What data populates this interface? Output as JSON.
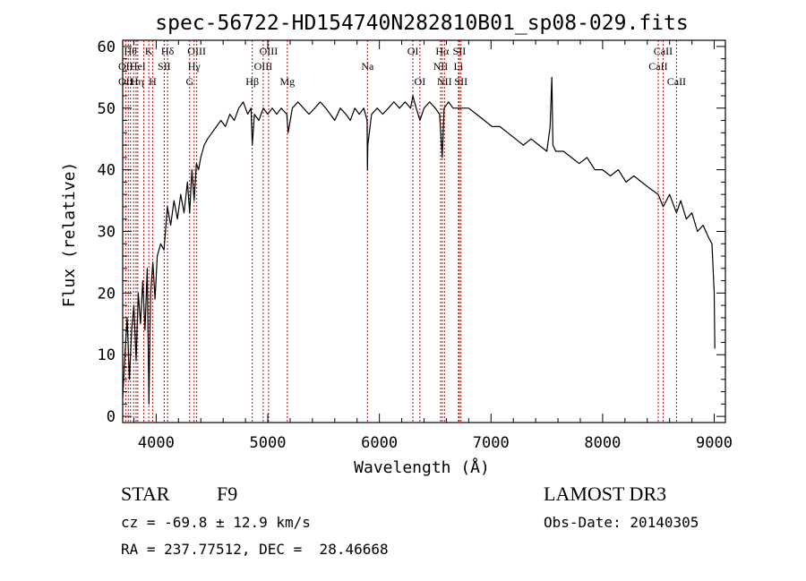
{
  "chart_data": {
    "type": "line",
    "title": "spec-56722-HD154740N282810B01_sp08-029.fits",
    "xlabel": "Wavelength (Å)",
    "ylabel": "Flux (relative)",
    "xlim": [
      3700,
      9100
    ],
    "ylim": [
      -1,
      61
    ],
    "x_ticks": [
      "4000",
      "5000",
      "6000",
      "7000",
      "8000",
      "9000"
    ],
    "y_ticks": [
      "0",
      "10",
      "20",
      "30",
      "40",
      "50",
      "60"
    ],
    "x_tick_values": [
      4000,
      5000,
      6000,
      7000,
      8000,
      9000
    ],
    "y_tick_values": [
      0,
      10,
      20,
      30,
      40,
      50,
      60
    ],
    "grid": false,
    "line_color": "#000000",
    "marker_color": "#cc0000",
    "series": [
      {
        "x": [
          3700,
          3720,
          3740,
          3760,
          3780,
          3800,
          3820,
          3840,
          3860,
          3880,
          3900,
          3920,
          3935,
          3950,
          3970,
          3990,
          4010,
          4040,
          4070,
          4100,
          4130,
          4160,
          4190,
          4220,
          4250,
          4280,
          4300,
          4320,
          4340,
          4360,
          4380,
          4400,
          4430,
          4460,
          4500,
          4540,
          4580,
          4620,
          4660,
          4700,
          4740,
          4780,
          4820,
          4850,
          4861,
          4880,
          4920,
          4960,
          5000,
          5040,
          5080,
          5120,
          5170,
          5183,
          5220,
          5270,
          5320,
          5370,
          5420,
          5470,
          5520,
          5560,
          5600,
          5650,
          5700,
          5740,
          5780,
          5820,
          5860,
          5890,
          5893,
          5896,
          5930,
          5980,
          6030,
          6080,
          6130,
          6180,
          6230,
          6280,
          6300,
          6330,
          6363,
          6400,
          6450,
          6500,
          6540,
          6563,
          6580,
          6620,
          6660,
          6700,
          6740,
          6800,
          6870,
          6940,
          7010,
          7080,
          7150,
          7220,
          7290,
          7360,
          7430,
          7500,
          7530,
          7545,
          7555,
          7580,
          7650,
          7720,
          7790,
          7860,
          7930,
          8000,
          8070,
          8140,
          8210,
          8280,
          8350,
          8420,
          8498,
          8542,
          8600,
          8662,
          8700,
          8750,
          8800,
          8850,
          8900,
          8950,
          8980,
          9000,
          9005
        ],
        "y": [
          3,
          10,
          16,
          6,
          14,
          18,
          9,
          20,
          15,
          22,
          14,
          24,
          2,
          20,
          25,
          19,
          26,
          28,
          27,
          34,
          31,
          35,
          32,
          36,
          33,
          38,
          33,
          40,
          35,
          41,
          40,
          42,
          44,
          45,
          46,
          47,
          48,
          47,
          49,
          48,
          50,
          51,
          49,
          50,
          44,
          49,
          48,
          50,
          49,
          50,
          49,
          50,
          49,
          46,
          50,
          51,
          50,
          49,
          50,
          51,
          50,
          49,
          48,
          50,
          49,
          48,
          50,
          49,
          50,
          48,
          40,
          44,
          49,
          50,
          49,
          50,
          51,
          50,
          51,
          50,
          52,
          50,
          48,
          50,
          51,
          50,
          49,
          42,
          50,
          51,
          50,
          50,
          50,
          50,
          49,
          48,
          47,
          47,
          46,
          45,
          44,
          45,
          44,
          43,
          47,
          55,
          44,
          43,
          43,
          42,
          41,
          42,
          40,
          40,
          39,
          40,
          38,
          39,
          38,
          37,
          36,
          34,
          36,
          33,
          35,
          32,
          33,
          30,
          31,
          29,
          28,
          20,
          11
        ]
      }
    ],
    "line_markers": [
      {
        "wl": 3727,
        "label": "OII"
      },
      {
        "wl": 3750,
        "label": "OII"
      },
      {
        "wl": 3770,
        "label": "Hθ"
      },
      {
        "wl": 3798,
        "label": "Hθ"
      },
      {
        "wl": 3820,
        "label": "HeI"
      },
      {
        "wl": 3835,
        "label": "Hη"
      },
      {
        "wl": 3889,
        "label": "Hη"
      },
      {
        "wl": 3934,
        "label": "K"
      },
      {
        "wl": 3968,
        "label": "H"
      },
      {
        "wl": 4072,
        "label": "SII"
      },
      {
        "wl": 4102,
        "label": "Hδ"
      },
      {
        "wl": 4300,
        "label": "G"
      },
      {
        "wl": 4340,
        "label": "Hγ"
      },
      {
        "wl": 4363,
        "label": "OIII"
      },
      {
        "wl": 4861,
        "label": "Hβ"
      },
      {
        "wl": 4959,
        "label": "OIII"
      },
      {
        "wl": 5007,
        "label": "OIII"
      },
      {
        "wl": 5175,
        "label": "Mg"
      },
      {
        "wl": 5893,
        "label": "Na"
      },
      {
        "wl": 6300,
        "label": "OI"
      },
      {
        "wl": 6363,
        "label": "OI"
      },
      {
        "wl": 6548,
        "label": "NII"
      },
      {
        "wl": 6563,
        "label": "Hα"
      },
      {
        "wl": 6583,
        "label": "NII"
      },
      {
        "wl": 6708,
        "label": "Li"
      },
      {
        "wl": 6716,
        "label": "SII"
      },
      {
        "wl": 6731,
        "label": "SII"
      },
      {
        "wl": 8498,
        "label": "CaII"
      },
      {
        "wl": 8542,
        "label": "CaII"
      },
      {
        "wl": 8662,
        "label": "CaII"
      }
    ],
    "marker_label_rows": [
      {
        "row": 1,
        "items": [
          {
            "wl": 3770,
            "label": "Hθ"
          },
          {
            "wl": 3934,
            "label": "K"
          },
          {
            "wl": 4102,
            "label": "Hδ"
          },
          {
            "wl": 4363,
            "label": "OIII"
          },
          {
            "wl": 5007,
            "label": "OIII"
          },
          {
            "wl": 6300,
            "label": "OI"
          },
          {
            "wl": 6563,
            "label": "Hα"
          },
          {
            "wl": 6716,
            "label": "SII"
          },
          {
            "wl": 8542,
            "label": "CaII"
          }
        ]
      },
      {
        "row": 2,
        "items": [
          {
            "wl": 3727,
            "label": "OII"
          },
          {
            "wl": 3835,
            "label": "HeI"
          },
          {
            "wl": 4072,
            "label": "SII"
          },
          {
            "wl": 4340,
            "label": "Hγ"
          },
          {
            "wl": 4959,
            "label": "OIII"
          },
          {
            "wl": 5893,
            "label": "Na"
          },
          {
            "wl": 6548,
            "label": "NII"
          },
          {
            "wl": 6708,
            "label": "Li"
          },
          {
            "wl": 8498,
            "label": "CaII"
          }
        ]
      },
      {
        "row": 3,
        "items": [
          {
            "wl": 3727,
            "label": "OII"
          },
          {
            "wl": 3830,
            "label": "Hη"
          },
          {
            "wl": 3968,
            "label": "H"
          },
          {
            "wl": 4300,
            "label": "G"
          },
          {
            "wl": 4861,
            "label": "Hβ"
          },
          {
            "wl": 5175,
            "label": "Mg"
          },
          {
            "wl": 6363,
            "label": "OI"
          },
          {
            "wl": 6583,
            "label": "NII"
          },
          {
            "wl": 6731,
            "label": "SII"
          },
          {
            "wl": 8662,
            "label": "CaII"
          }
        ]
      }
    ]
  },
  "footer": {
    "object_class": "STAR",
    "subclass": "F9",
    "survey": "LAMOST DR3",
    "velocity": "cz = -69.8 ± 12.9 km/s",
    "obs_date": "Obs-Date: 20140305",
    "coords": "RA = 237.77512, DEC =  28.46668"
  }
}
